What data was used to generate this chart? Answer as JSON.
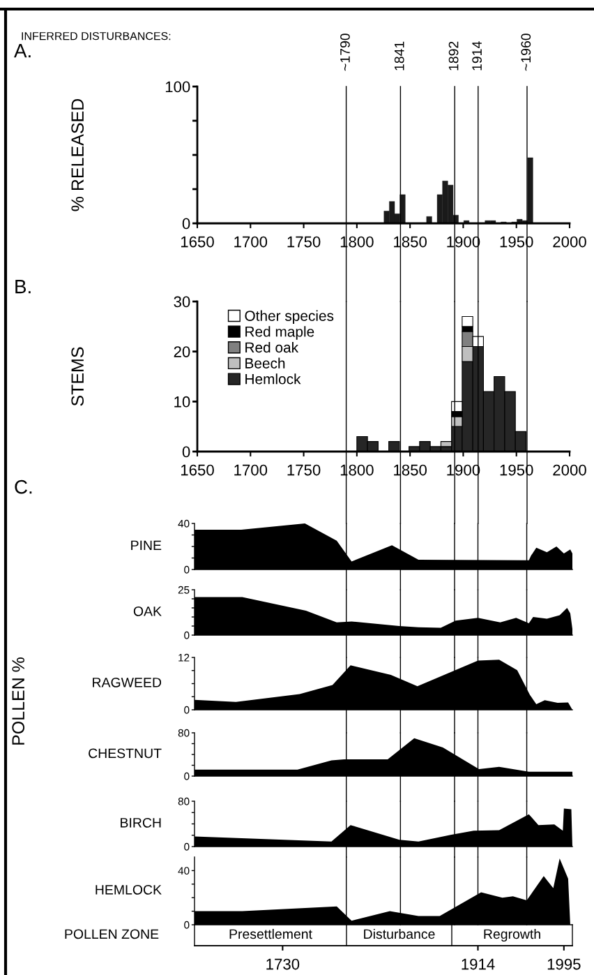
{
  "chart_data": [
    {
      "type": "bar",
      "ylabel": "% RELEASED",
      "annotations": [
        "A.",
        "INFERRED DISTURBANCES:"
      ],
      "x": [
        1828,
        1833,
        1838,
        1843,
        1868,
        1878,
        1883,
        1888,
        1893,
        1903,
        1923,
        1928,
        1938,
        1948,
        1953,
        1958,
        1963
      ],
      "values": [
        9,
        16,
        7,
        21,
        5,
        21,
        31,
        28,
        6,
        2,
        2,
        2,
        1,
        1,
        3,
        2,
        48
      ],
      "color": "#1a1a1a",
      "xlim": [
        1650,
        2000
      ],
      "xticks": [
        1650,
        1700,
        1750,
        1800,
        1850,
        1900,
        1950,
        2000
      ],
      "ylim": [
        0,
        100
      ],
      "yticks": [
        0,
        {
          "value": 25,
          "label": null
        },
        {
          "value": 50,
          "label": null
        },
        {
          "value": 75,
          "label": null
        },
        100
      ],
      "grid": false,
      "legend": false,
      "ref_lines": [
        {
          "axis": "x",
          "value": 1790,
          "label": "~1790"
        },
        {
          "axis": "x",
          "value": 1841,
          "label": "1841"
        },
        {
          "axis": "x",
          "value": 1892,
          "label": "1892"
        },
        {
          "axis": "x",
          "value": 1914,
          "label": "1914"
        },
        {
          "axis": "x",
          "value": 1960,
          "label": "~1960"
        }
      ]
    },
    {
      "type": "bar",
      "ylabel": "STEMS",
      "annotations": [
        "B."
      ],
      "stacked": true,
      "legend": "top left",
      "x": [
        1805,
        1815,
        1835,
        1854,
        1864,
        1874,
        1884,
        1894,
        1904,
        1914,
        1924,
        1934,
        1944,
        1954
      ],
      "series": [
        {
          "name": "Hemlock",
          "color": "#262626",
          "values": [
            3,
            2,
            2,
            1,
            2,
            1,
            1,
            5,
            18,
            21,
            12,
            15,
            12,
            4
          ]
        },
        {
          "name": "Beech",
          "color": "#bfbfbf",
          "values": [
            null,
            null,
            null,
            null,
            null,
            null,
            1,
            2,
            3,
            null,
            null,
            null,
            null,
            null
          ]
        },
        {
          "name": "Red oak",
          "color": "#808080",
          "values": [
            null,
            null,
            null,
            null,
            null,
            null,
            null,
            null,
            3,
            null,
            null,
            null,
            null,
            null
          ]
        },
        {
          "name": "Red maple",
          "color": "#000000",
          "values": [
            null,
            null,
            null,
            null,
            null,
            null,
            null,
            1,
            1,
            null,
            null,
            null,
            null,
            null
          ]
        },
        {
          "name": "Other species",
          "color": "#ffffff",
          "values": [
            null,
            null,
            null,
            null,
            null,
            null,
            null,
            2,
            2,
            2,
            null,
            null,
            null,
            null
          ]
        }
      ],
      "xlim": [
        1650,
        2000
      ],
      "xticks": [
        1650,
        1700,
        1750,
        1800,
        1850,
        1900,
        1950,
        2000
      ],
      "ylim": [
        0,
        30
      ],
      "yticks": [
        0,
        10,
        20,
        30
      ],
      "grid": false,
      "ref_lines": [
        {
          "axis": "x",
          "value": 1790
        },
        {
          "axis": "x",
          "value": 1841
        },
        {
          "axis": "x",
          "value": 1892
        },
        {
          "axis": "x",
          "value": 1914
        },
        {
          "axis": "x",
          "value": 1960
        }
      ]
    },
    {
      "type": "area",
      "title": "PINE",
      "annotations": [
        "C."
      ],
      "color": "#000000",
      "x": [
        1647,
        1691,
        1751,
        1781,
        1795,
        1833,
        1858,
        1962,
        1964,
        1969,
        1979,
        1988,
        1995,
        2001,
        2003
      ],
      "values": [
        34.5,
        34.5,
        40,
        25,
        7,
        21,
        8.5,
        8,
        12,
        19,
        15,
        20,
        14,
        17.5,
        14
      ],
      "xlim": [
        1647,
        2003
      ],
      "ylim": [
        0,
        40
      ],
      "yticks": [
        0,
        {
          "value": 10,
          "label": null
        },
        {
          "value": 20,
          "label": null
        },
        {
          "value": 30,
          "label": null
        },
        40
      ],
      "tick_labels": "y",
      "grid": false,
      "ref_lines": [
        {
          "axis": "x",
          "value": 1790
        },
        {
          "axis": "x",
          "value": 1841
        },
        {
          "axis": "x",
          "value": 1892
        },
        {
          "axis": "x",
          "value": 1914
        },
        {
          "axis": "x",
          "value": 1960
        }
      ]
    },
    {
      "type": "area",
      "title": "OAK",
      "color": "#000000",
      "x": [
        1647,
        1692,
        1752,
        1781,
        1795,
        1840,
        1858,
        1879,
        1893,
        1914,
        1935,
        1950,
        1962,
        1966,
        1979,
        1991,
        1998,
        2001,
        2003
      ],
      "values": [
        21,
        21,
        13.5,
        7,
        7.5,
        5,
        4.3,
        4,
        8,
        9.5,
        7,
        9.5,
        6.5,
        10,
        9,
        11,
        15,
        12,
        3.5
      ],
      "xlim": [
        1647,
        2003
      ],
      "ylim": [
        0,
        25
      ],
      "yticks": [
        0,
        {
          "value": 5,
          "label": null
        },
        {
          "value": 10,
          "label": null
        },
        {
          "value": 15,
          "label": null
        },
        {
          "value": 20,
          "label": null
        },
        25
      ],
      "tick_labels": "y",
      "grid": false,
      "ref_lines": [
        {
          "axis": "x",
          "value": 1790
        },
        {
          "axis": "x",
          "value": 1841
        },
        {
          "axis": "x",
          "value": 1892
        },
        {
          "axis": "x",
          "value": 1914
        },
        {
          "axis": "x",
          "value": 1960
        }
      ]
    },
    {
      "type": "area",
      "title": "RAGWEED",
      "ylabel": "POLLEN %",
      "color": "#000000",
      "x": [
        1647,
        1686,
        1746,
        1777,
        1794,
        1832,
        1857,
        1914,
        1934,
        1951,
        1963,
        1969,
        1977,
        1989,
        1999,
        2003
      ],
      "values": [
        2.3,
        1.8,
        3.6,
        5.7,
        10.2,
        8,
        5.4,
        11.3,
        11.5,
        9.1,
        3.4,
        1.3,
        2.2,
        1.6,
        1.7,
        0
      ],
      "xlim": [
        1647,
        2003
      ],
      "ylim": [
        0,
        12
      ],
      "yticks": [
        0,
        {
          "value": 3,
          "label": null
        },
        {
          "value": 6,
          "label": null
        },
        {
          "value": 9,
          "label": null
        },
        12
      ],
      "tick_labels": "y",
      "grid": false,
      "ref_lines": [
        {
          "axis": "x",
          "value": 1790
        },
        {
          "axis": "x",
          "value": 1841
        },
        {
          "axis": "x",
          "value": 1892
        },
        {
          "axis": "x",
          "value": 1914
        },
        {
          "axis": "x",
          "value": 1960
        }
      ]
    },
    {
      "type": "area",
      "title": "CHESTNUT",
      "color": "#000000",
      "x": [
        1647,
        1744,
        1776,
        1788,
        1829,
        1854,
        1881,
        1915,
        1934,
        1962,
        2003
      ],
      "values": [
        12,
        12,
        29,
        31,
        31,
        70,
        53,
        13,
        17,
        8,
        8
      ],
      "xlim": [
        1647,
        2003
      ],
      "ylim": [
        0,
        80
      ],
      "yticks": [
        0,
        {
          "value": 20,
          "label": null
        },
        {
          "value": 40,
          "label": null
        },
        {
          "value": 60,
          "label": null
        },
        80
      ],
      "tick_labels": "y",
      "grid": false,
      "ref_lines": [
        {
          "axis": "x",
          "value": 1790
        },
        {
          "axis": "x",
          "value": 1841
        },
        {
          "axis": "x",
          "value": 1892
        },
        {
          "axis": "x",
          "value": 1914
        },
        {
          "axis": "x",
          "value": 1960
        }
      ]
    },
    {
      "type": "area",
      "title": "BIRCH",
      "color": "#000000",
      "x": [
        1647,
        1776,
        1794,
        1840,
        1858,
        1889,
        1910,
        1934,
        1962,
        1971,
        1986,
        1994,
        1995,
        2002,
        2003
      ],
      "values": [
        18,
        9,
        38,
        12,
        9,
        21,
        28,
        29,
        57,
        38,
        39,
        28,
        67,
        66,
        0
      ],
      "xlim": [
        1647,
        2003
      ],
      "ylim": [
        0,
        80
      ],
      "yticks": [
        0,
        {
          "value": 20,
          "label": null
        },
        {
          "value": 40,
          "label": null
        },
        {
          "value": 60,
          "label": null
        },
        80
      ],
      "tick_labels": "y",
      "grid": false,
      "ref_lines": [
        {
          "axis": "x",
          "value": 1790
        },
        {
          "axis": "x",
          "value": 1841
        },
        {
          "axis": "x",
          "value": 1892
        },
        {
          "axis": "x",
          "value": 1914
        },
        {
          "axis": "x",
          "value": 1960
        }
      ]
    },
    {
      "type": "area",
      "title": "HEMLOCK",
      "annotations": [
        "POLLEN ZONE",
        "Presettlement",
        "Disturbance",
        "Regrowth"
      ],
      "color": "#000000",
      "x": [
        1647,
        1692,
        1781,
        1795,
        1831,
        1858,
        1878,
        1917,
        1937,
        1947,
        1960,
        1976,
        1985,
        1991,
        1999,
        2001
      ],
      "values": [
        10,
        10,
        13.5,
        3,
        10,
        6.5,
        6.5,
        24,
        20,
        21,
        18,
        36,
        27,
        49,
        34,
        0
      ],
      "xlim": [
        1647,
        2003
      ],
      "ylim": [
        0,
        50
      ],
      "yticks": [
        0,
        {
          "value": 10,
          "label": null
        },
        {
          "value": 20,
          "label": null
        },
        {
          "value": 30,
          "label": null
        },
        40
      ],
      "xticks": [
        1730,
        1914,
        1995
      ],
      "grid": false,
      "ref_lines": [
        {
          "axis": "x",
          "value": 1790
        },
        {
          "axis": "x",
          "value": 1841
        },
        {
          "axis": "x",
          "value": 1892
        },
        {
          "axis": "x",
          "value": 1914
        },
        {
          "axis": "x",
          "value": 1960
        }
      ]
    }
  ]
}
